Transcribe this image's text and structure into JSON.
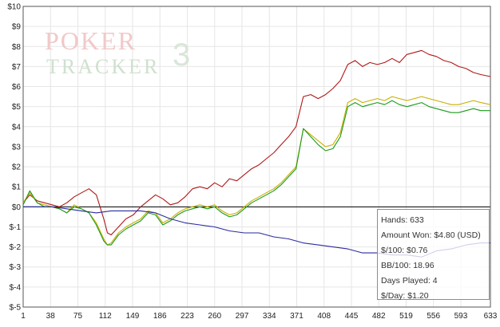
{
  "chart_data": {
    "type": "line",
    "title": "",
    "xlabel": "",
    "ylabel": "",
    "xlim": [
      1,
      633
    ],
    "ylim": [
      -5,
      10
    ],
    "grid": true,
    "x_ticks": [
      1,
      38,
      75,
      112,
      149,
      186,
      223,
      260,
      297,
      334,
      371,
      408,
      445,
      482,
      519,
      556,
      593,
      633
    ],
    "y_ticks": [
      {
        "value": 10,
        "label": "$10"
      },
      {
        "value": 9,
        "label": "$9"
      },
      {
        "value": 8,
        "label": "$8"
      },
      {
        "value": 7,
        "label": "$7"
      },
      {
        "value": 6,
        "label": "$6"
      },
      {
        "value": 5,
        "label": "$5"
      },
      {
        "value": 4,
        "label": "$4"
      },
      {
        "value": 3,
        "label": "$3"
      },
      {
        "value": 2,
        "label": "$2"
      },
      {
        "value": 1,
        "label": "$1"
      },
      {
        "value": 0,
        "label": "$0"
      },
      {
        "value": -1,
        "label": "$-1"
      },
      {
        "value": -2,
        "label": "$-2"
      },
      {
        "value": -3,
        "label": "$-3"
      },
      {
        "value": -4,
        "label": "$-4"
      },
      {
        "value": -5,
        "label": "$-5"
      }
    ],
    "series": [
      {
        "color": "#b01818",
        "x": [
          1,
          10,
          20,
          30,
          40,
          50,
          60,
          70,
          80,
          90,
          100,
          110,
          115,
          120,
          130,
          140,
          150,
          160,
          170,
          180,
          190,
          200,
          210,
          220,
          230,
          240,
          250,
          260,
          270,
          280,
          290,
          300,
          310,
          320,
          330,
          340,
          350,
          360,
          370,
          380,
          390,
          400,
          410,
          420,
          430,
          440,
          450,
          460,
          470,
          480,
          490,
          500,
          510,
          520,
          530,
          540,
          550,
          560,
          570,
          580,
          590,
          600,
          610,
          620,
          633
        ],
        "y": [
          0.2,
          0.6,
          0.3,
          0.2,
          0.1,
          0.0,
          0.2,
          0.5,
          0.7,
          0.9,
          0.6,
          -0.6,
          -1.3,
          -1.4,
          -1.0,
          -0.6,
          -0.4,
          0.0,
          0.3,
          0.6,
          0.4,
          0.1,
          0.2,
          0.5,
          0.9,
          1.0,
          0.9,
          1.2,
          1.0,
          1.4,
          1.3,
          1.6,
          1.9,
          2.1,
          2.4,
          2.7,
          3.1,
          3.5,
          4.0,
          5.5,
          5.6,
          5.4,
          5.6,
          5.9,
          6.3,
          7.1,
          7.3,
          7.0,
          7.2,
          7.1,
          7.2,
          7.4,
          7.2,
          7.6,
          7.7,
          7.8,
          7.6,
          7.5,
          7.3,
          7.2,
          7.0,
          6.9,
          6.7,
          6.6,
          6.5
        ]
      },
      {
        "color": "#c8b000",
        "x": [
          1,
          10,
          20,
          30,
          40,
          50,
          60,
          70,
          80,
          90,
          100,
          110,
          115,
          120,
          130,
          140,
          150,
          160,
          170,
          180,
          190,
          200,
          210,
          220,
          230,
          240,
          250,
          260,
          270,
          280,
          290,
          300,
          310,
          320,
          330,
          340,
          350,
          360,
          370,
          380,
          390,
          400,
          410,
          420,
          430,
          440,
          450,
          460,
          470,
          480,
          490,
          500,
          510,
          520,
          530,
          540,
          550,
          560,
          570,
          580,
          590,
          600,
          610,
          620,
          633
        ],
        "y": [
          0.2,
          0.7,
          0.2,
          0.1,
          0.0,
          -0.1,
          -0.3,
          0.1,
          -0.1,
          -0.3,
          -0.8,
          -1.6,
          -1.9,
          -1.8,
          -1.3,
          -1.0,
          -0.8,
          -0.6,
          -0.2,
          -0.3,
          -0.8,
          -0.6,
          -0.3,
          -0.1,
          0.0,
          0.1,
          0.0,
          0.1,
          -0.2,
          -0.4,
          -0.3,
          0.0,
          0.3,
          0.5,
          0.7,
          0.9,
          1.2,
          1.6,
          2.0,
          3.9,
          3.6,
          3.3,
          3.0,
          3.1,
          3.7,
          5.2,
          5.4,
          5.2,
          5.3,
          5.4,
          5.3,
          5.5,
          5.4,
          5.3,
          5.4,
          5.5,
          5.4,
          5.3,
          5.2,
          5.1,
          5.1,
          5.2,
          5.3,
          5.2,
          5.1
        ]
      },
      {
        "color": "#1a9a1a",
        "x": [
          1,
          10,
          20,
          30,
          40,
          50,
          60,
          70,
          80,
          90,
          100,
          110,
          115,
          120,
          130,
          140,
          150,
          160,
          170,
          180,
          190,
          200,
          210,
          220,
          230,
          240,
          250,
          260,
          270,
          280,
          290,
          300,
          310,
          320,
          330,
          340,
          350,
          360,
          370,
          380,
          390,
          400,
          410,
          420,
          430,
          440,
          450,
          460,
          470,
          480,
          490,
          500,
          510,
          520,
          530,
          540,
          550,
          560,
          570,
          580,
          590,
          600,
          610,
          620,
          633
        ],
        "y": [
          0.1,
          0.8,
          0.2,
          0.0,
          0.0,
          -0.1,
          -0.3,
          0.0,
          -0.1,
          -0.3,
          -0.9,
          -1.7,
          -1.9,
          -1.9,
          -1.4,
          -1.1,
          -0.9,
          -0.7,
          -0.3,
          -0.4,
          -0.9,
          -0.7,
          -0.4,
          -0.2,
          -0.1,
          0.0,
          -0.1,
          0.0,
          -0.3,
          -0.5,
          -0.4,
          -0.1,
          0.2,
          0.4,
          0.6,
          0.8,
          1.1,
          1.5,
          1.9,
          3.9,
          3.5,
          3.1,
          2.8,
          2.9,
          3.5,
          5.0,
          5.2,
          5.0,
          5.1,
          5.2,
          5.1,
          5.3,
          5.1,
          5.0,
          5.1,
          5.2,
          5.0,
          4.9,
          4.8,
          4.7,
          4.7,
          4.8,
          4.9,
          4.8,
          4.8
        ]
      },
      {
        "color": "#2a2aa0",
        "x": [
          1,
          20,
          40,
          60,
          80,
          100,
          120,
          140,
          160,
          180,
          200,
          220,
          240,
          260,
          280,
          300,
          320,
          340,
          360,
          380,
          400,
          420,
          440,
          460,
          480,
          500,
          520,
          540,
          560,
          580,
          600,
          620,
          633
        ],
        "y": [
          0.0,
          0.0,
          0.0,
          -0.1,
          -0.2,
          -0.3,
          -0.2,
          -0.2,
          -0.2,
          -0.3,
          -0.6,
          -0.8,
          -0.9,
          -1.0,
          -1.2,
          -1.3,
          -1.3,
          -1.5,
          -1.6,
          -1.8,
          -1.9,
          -2.0,
          -2.1,
          -2.3,
          -2.3,
          -2.4,
          -2.4,
          -2.5,
          -2.2,
          -2.1,
          -1.9,
          -1.8,
          -1.8
        ]
      }
    ]
  },
  "stats": {
    "hands": "Hands: 633",
    "amount_won": "Amount Won: $4.80 (USD)",
    "per100": "$/100: $0.76",
    "bb100": "BB/100: 18.96",
    "days": "Days Played: 4",
    "per_day": "$/Day: $1.20"
  },
  "logo": {
    "line1": "POKER",
    "line2": "TRACKER",
    "num": "3"
  }
}
